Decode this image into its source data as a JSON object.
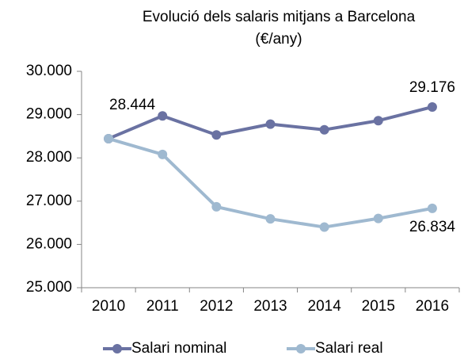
{
  "chart_data": {
    "type": "line",
    "title": "Evolució dels salaris mitjans a Barcelona",
    "subtitle": "(€/any)",
    "categories": [
      "2010",
      "2011",
      "2012",
      "2013",
      "2014",
      "2015",
      "2016"
    ],
    "series": [
      {
        "name": "Salari nominal",
        "color": "#6a72a2",
        "values": [
          28444,
          28970,
          28530,
          28780,
          28650,
          28860,
          29176
        ],
        "value_labels": [
          "28.444",
          null,
          null,
          null,
          null,
          null,
          "29.176"
        ]
      },
      {
        "name": "Salari real",
        "color": "#9fb9d0",
        "values": [
          28444,
          28080,
          26870,
          26590,
          26400,
          26600,
          26834
        ],
        "value_labels": [
          null,
          null,
          null,
          null,
          null,
          null,
          "26.834"
        ]
      }
    ],
    "ylim": [
      25000,
      30000
    ],
    "yticks": [
      {
        "value": 25000,
        "label": "25.000"
      },
      {
        "value": 26000,
        "label": "26.000"
      },
      {
        "value": 27000,
        "label": "27.000"
      },
      {
        "value": 28000,
        "label": "28.000"
      },
      {
        "value": 29000,
        "label": "29.000"
      },
      {
        "value": 30000,
        "label": "30.000"
      }
    ],
    "grid": false,
    "legend": "bottom"
  }
}
